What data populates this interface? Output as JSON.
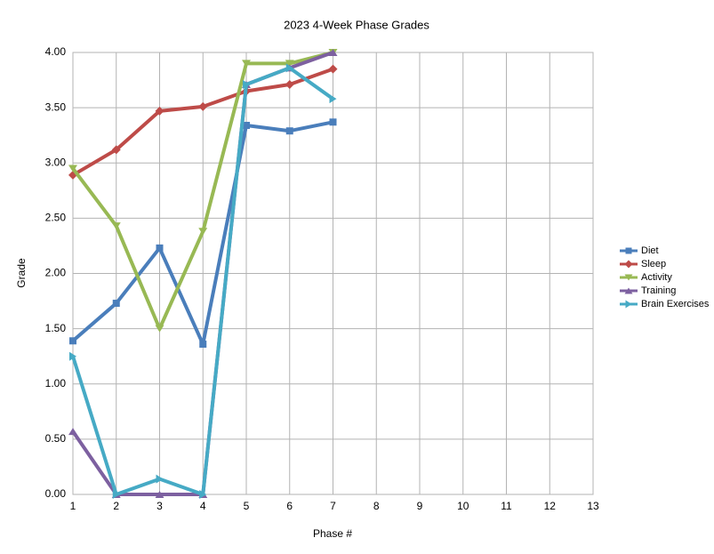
{
  "chart_data": {
    "type": "line",
    "title": "2023 4-Week Phase Grades",
    "x_label": "Phase #",
    "y_label": "Grade",
    "x": [
      1,
      2,
      3,
      4,
      5,
      6,
      7
    ],
    "series": [
      {
        "name": "Diet",
        "color": "#4a7ebb",
        "marker": "square",
        "values": [
          1.39,
          1.73,
          2.23,
          1.36,
          3.34,
          3.29,
          3.37
        ]
      },
      {
        "name": "Sleep",
        "color": "#be4b48",
        "marker": "diamond",
        "values": [
          2.89,
          3.12,
          3.47,
          3.51,
          3.65,
          3.71,
          3.85
        ]
      },
      {
        "name": "Activity",
        "color": "#98b954",
        "marker": "triangle-down",
        "values": [
          2.95,
          2.43,
          1.5,
          2.38,
          3.9,
          3.9,
          4.0
        ]
      },
      {
        "name": "Training",
        "color": "#7d60a0",
        "marker": "triangle-up",
        "values": [
          0.57,
          0,
          0,
          0,
          3.71,
          3.86,
          4.0
        ]
      },
      {
        "name": "Brain Exercises",
        "color": "#46aac5",
        "marker": "triangle-right",
        "values": [
          1.25,
          0,
          0.14,
          0,
          3.71,
          3.86,
          3.58
        ]
      }
    ],
    "xlim": [
      1,
      13
    ],
    "xticks": [
      1,
      2,
      3,
      4,
      5,
      6,
      7,
      8,
      9,
      10,
      11,
      12,
      13
    ],
    "ylim": [
      0,
      4
    ],
    "yticks": [
      {
        "value": 0,
        "label": "0.00"
      },
      {
        "value": 0.5,
        "label": "0.50"
      },
      {
        "value": 1,
        "label": "1.00"
      },
      {
        "value": 1.5,
        "label": "1.50"
      },
      {
        "value": 2,
        "label": "2.00"
      },
      {
        "value": 2.5,
        "label": "2.50"
      },
      {
        "value": 3,
        "label": "3.00"
      },
      {
        "value": 3.5,
        "label": "3.50"
      },
      {
        "value": 4,
        "label": "4.00"
      }
    ],
    "grid": true,
    "legend": "right"
  }
}
